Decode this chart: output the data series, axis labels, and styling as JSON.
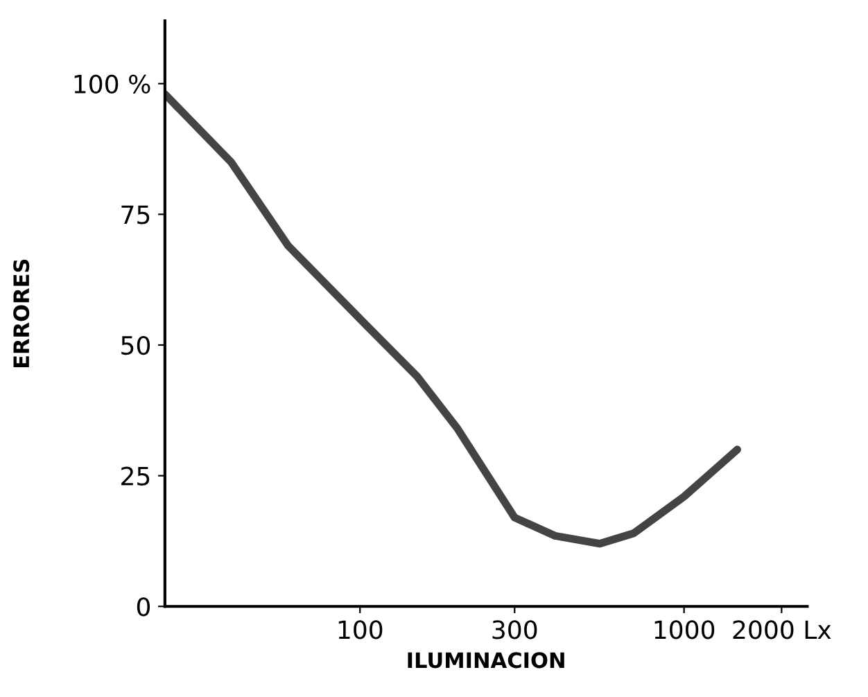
{
  "chart_data": {
    "type": "line",
    "xlabel": "ILUMINACION",
    "ylabel": "ERRORES",
    "log": "x",
    "x": [
      25,
      40,
      60,
      100,
      150,
      200,
      300,
      400,
      550,
      700,
      1000,
      1460
    ],
    "series": [
      {
        "color": "#444444",
        "values": [
          98,
          85,
          69,
          55,
          44,
          34,
          17,
          13.5,
          12,
          14,
          21,
          30
        ]
      }
    ],
    "xlim": [
      25,
      2400
    ],
    "ylim": [
      0,
      112
    ],
    "xticks": [
      100,
      300,
      1000,
      {
        "value": 2000,
        "label": "2000 Lx"
      }
    ],
    "yticks": [
      0,
      25,
      50,
      75,
      {
        "value": 100,
        "label": "100 %"
      }
    ],
    "grid": false,
    "legend": false,
    "marker": "none",
    "line_style": "solid"
  }
}
